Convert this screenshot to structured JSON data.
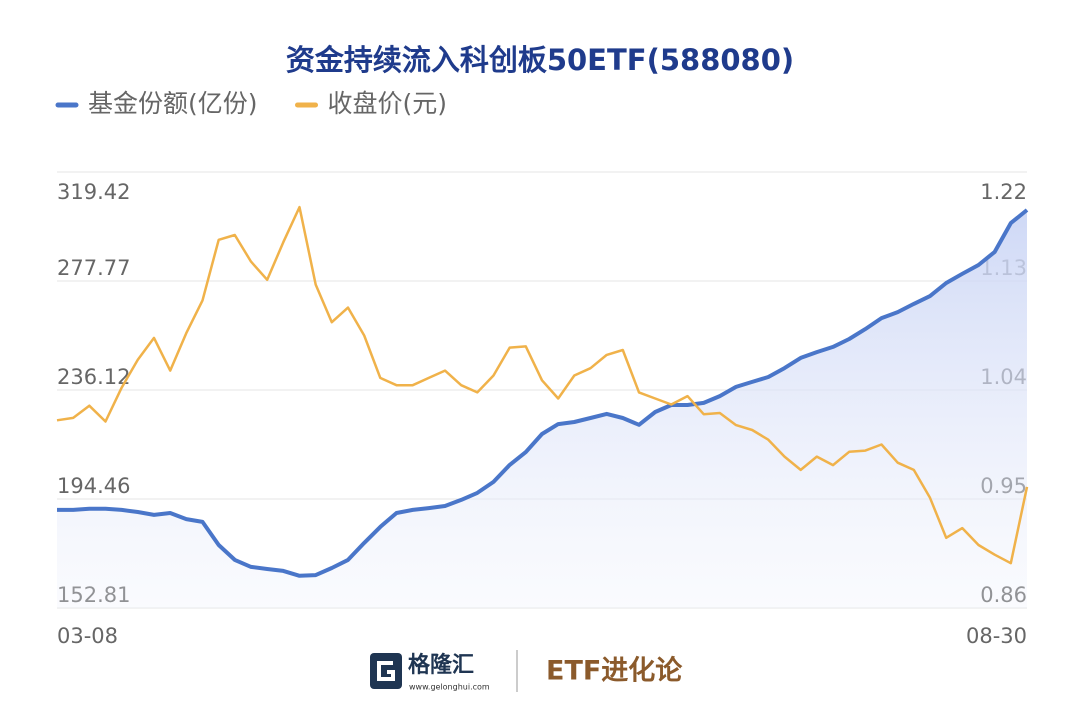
{
  "chart_data": {
    "type": "line",
    "title": "资金持续流入科创板50ETF(588080)",
    "categories": [
      "03-08",
      null,
      null,
      null,
      null,
      null,
      null,
      null,
      null,
      null,
      null,
      null,
      null,
      null,
      null,
      null,
      null,
      null,
      null,
      null,
      null,
      null,
      null,
      null,
      null,
      null,
      null,
      null,
      null,
      null,
      null,
      null,
      null,
      null,
      null,
      null,
      null,
      null,
      null,
      null,
      null,
      null,
      null,
      null,
      null,
      null,
      null,
      null,
      null,
      null,
      null,
      null,
      null,
      null,
      null,
      null,
      null,
      null,
      null,
      null,
      "08-30"
    ],
    "series": [
      {
        "name": "基金份额(亿份)",
        "color": "#4a76c9",
        "values": [
          190.3,
          190.3,
          190.7,
          190.7,
          190.3,
          189.5,
          188.4,
          189.1,
          186.8,
          185.7,
          176.9,
          171.2,
          168.5,
          167.7,
          167.0,
          165.1,
          165.4,
          168.1,
          171.2,
          177.7,
          183.8,
          189.1,
          190.3,
          191.0,
          191.8,
          194.1,
          196.8,
          201.0,
          207.5,
          212.4,
          219.3,
          223.1,
          223.9,
          225.4,
          227.0,
          225.4,
          222.8,
          227.7,
          230.4,
          230.4,
          231.2,
          233.8,
          237.3,
          239.2,
          241.1,
          244.5,
          248.4,
          250.6,
          252.6,
          255.6,
          259.4,
          263.6,
          265.9,
          269.0,
          272.0,
          277.0,
          280.5,
          283.9,
          288.9,
          299.9,
          304.9
        ]
      },
      {
        "name": "收盘价(元)",
        "color": "#f0b24a",
        "axis": "y2",
        "values": [
          1.015,
          1.017,
          1.027,
          1.014,
          1.042,
          1.065,
          1.083,
          1.056,
          1.087,
          1.114,
          1.164,
          1.168,
          1.146,
          1.131,
          1.162,
          1.191,
          1.127,
          1.096,
          1.108,
          1.085,
          1.05,
          1.044,
          1.044,
          1.05,
          1.056,
          1.044,
          1.038,
          1.052,
          1.075,
          1.076,
          1.048,
          1.033,
          1.052,
          1.058,
          1.069,
          1.073,
          1.038,
          1.033,
          1.028,
          1.035,
          1.02,
          1.021,
          1.011,
          1.007,
          0.999,
          0.985,
          0.974,
          0.985,
          0.978,
          0.989,
          0.99,
          0.995,
          0.98,
          0.974,
          0.951,
          0.918,
          0.926,
          0.912,
          0.904,
          0.897,
          0.96
        ]
      }
    ],
    "ylim": [
      152.81,
      319.42
    ],
    "yticks": [
      319.42,
      277.77,
      236.12,
      194.46,
      152.81
    ],
    "y2lim": [
      0.86,
      1.22
    ],
    "y2ticks": [
      1.22,
      1.13,
      1.04,
      0.95,
      0.86
    ],
    "grid": true,
    "legend": "top-left"
  },
  "footer": {
    "logo": "格隆汇",
    "url": "www.gelonghui.com",
    "brand": "ETF进化论"
  }
}
